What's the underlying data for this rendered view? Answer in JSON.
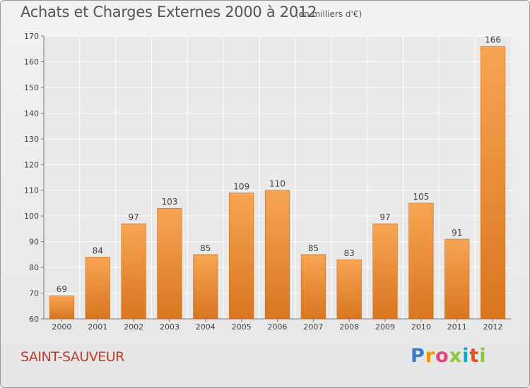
{
  "chart_data": {
    "type": "bar",
    "title": "Achats et Charges Externes 2000 à 2012",
    "subtitle": "(en milliers d'€)",
    "categories": [
      "2000",
      "2001",
      "2002",
      "2003",
      "2004",
      "2005",
      "2006",
      "2007",
      "2008",
      "2009",
      "2010",
      "2011",
      "2012"
    ],
    "values": [
      69,
      84,
      97,
      103,
      85,
      109,
      110,
      85,
      83,
      97,
      105,
      91,
      166
    ],
    "ylim": [
      60,
      170
    ],
    "yticks": [
      60,
      70,
      80,
      90,
      100,
      110,
      120,
      130,
      140,
      150,
      160,
      170
    ],
    "grid": true,
    "bar_color_top": "#f7a553",
    "bar_color_bottom": "#d97520"
  },
  "commune": "SAINT-SAUVEUR",
  "logo": {
    "letters": [
      "P",
      "r",
      "o",
      "x",
      "i",
      "t",
      "i"
    ],
    "colors": [
      "#3b7bbf",
      "#f29400",
      "#e0457b",
      "#8cc63f",
      "#1aa3c8",
      "#e94e1b",
      "#8cc63f"
    ]
  }
}
